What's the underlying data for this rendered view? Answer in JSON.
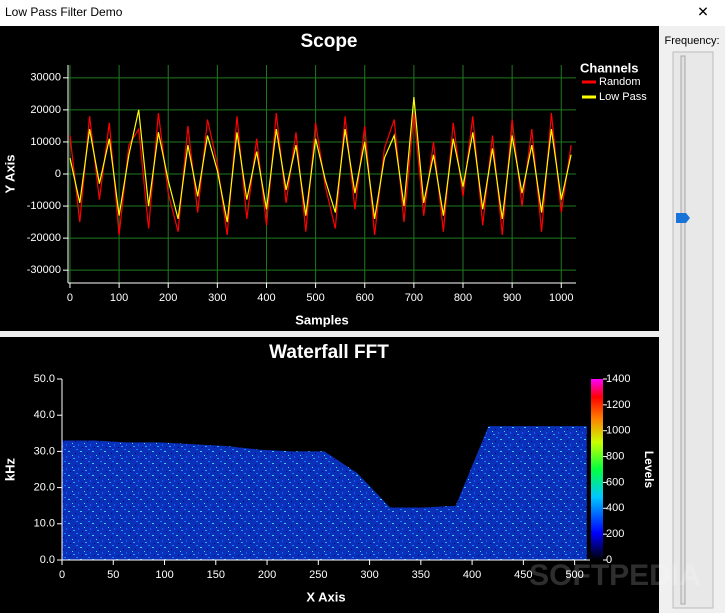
{
  "window": {
    "title": "Low Pass Filter Demo",
    "slider_label": "Frequency:",
    "watermark": "SOFTPEDIA"
  },
  "chart_data": [
    {
      "type": "line",
      "title": "Scope",
      "x_label": "Samples",
      "y_label": "Y Axis",
      "legend_title": "Channels",
      "x": [
        0,
        20,
        40,
        60,
        80,
        100,
        120,
        140,
        160,
        180,
        200,
        220,
        240,
        260,
        280,
        300,
        320,
        340,
        360,
        380,
        400,
        420,
        440,
        460,
        480,
        500,
        520,
        540,
        560,
        580,
        600,
        620,
        640,
        660,
        680,
        700,
        720,
        740,
        760,
        780,
        800,
        820,
        840,
        860,
        880,
        900,
        920,
        940,
        960,
        980,
        1000,
        1020
      ],
      "series": [
        {
          "name": "Random",
          "color": "#ff0000",
          "values": [
            12000,
            -15000,
            18000,
            -8000,
            16000,
            -19000,
            9000,
            14000,
            -17000,
            19000,
            -6000,
            -18000,
            15000,
            -12000,
            17000,
            3000,
            -19000,
            18000,
            -14000,
            11000,
            -16000,
            19000,
            -9000,
            13000,
            -18000,
            16000,
            -4000,
            -17000,
            18000,
            -11000,
            15000,
            -19000,
            8000,
            17000,
            -15000,
            19000,
            -13000,
            10000,
            -18000,
            16000,
            -7000,
            18000,
            -16000,
            12000,
            -19000,
            17000,
            -10000,
            14000,
            -18000,
            19000,
            -12000,
            9000
          ]
        },
        {
          "name": "Low Pass",
          "color": "#ffff00",
          "values": [
            5000,
            -9000,
            14000,
            -3000,
            11000,
            -13000,
            6000,
            20000,
            -10000,
            13000,
            -2000,
            -14000,
            9000,
            -7000,
            12000,
            1000,
            -15000,
            13000,
            -8000,
            7000,
            -11000,
            14000,
            -5000,
            9000,
            -13000,
            11000,
            -2000,
            -12000,
            14000,
            -6000,
            10000,
            -14000,
            5000,
            12000,
            -10000,
            24000,
            -9000,
            6000,
            -13000,
            11000,
            -4000,
            13000,
            -11000,
            8000,
            -14000,
            12000,
            -6000,
            9000,
            -12000,
            14000,
            -8000,
            6000
          ]
        }
      ],
      "xlim": [
        -4,
        1030
      ],
      "ylim": [
        -34000,
        34000
      ],
      "xticks": [
        0,
        100,
        200,
        300,
        400,
        500,
        600,
        700,
        800,
        900,
        1000
      ],
      "yticks": [
        -30000,
        -20000,
        -10000,
        0,
        10000,
        20000,
        30000
      ],
      "grid": true,
      "grid_color": "#1e7a1e",
      "legend": "right"
    },
    {
      "type": "heatmap",
      "title": "Waterfall FFT",
      "x_label": "X Axis",
      "y_label": "kHz",
      "colorbar_label": "Levels",
      "x": [
        0,
        32,
        64,
        96,
        128,
        160,
        192,
        224,
        256,
        288,
        320,
        352,
        384,
        416,
        448,
        480,
        512
      ],
      "values": [
        33,
        33,
        32.5,
        32.5,
        32,
        31.5,
        30.5,
        30,
        30,
        24,
        14.5,
        14.5,
        15,
        37,
        37,
        37,
        37
      ],
      "xlim": [
        0,
        515
      ],
      "ylim": [
        0,
        50
      ],
      "xticks": [
        0,
        50,
        100,
        150,
        200,
        250,
        300,
        350,
        400,
        450,
        500
      ],
      "yticks": [
        {
          "value": 0,
          "label": "0.0"
        },
        {
          "value": 10,
          "label": "10.0"
        },
        {
          "value": 20,
          "label": "20.0"
        },
        {
          "value": 30,
          "label": "30.0"
        },
        {
          "value": 40,
          "label": "40.0"
        },
        {
          "value": 50,
          "label": "50.0"
        }
      ],
      "clim": [
        0,
        1400
      ],
      "cticks": [
        0,
        200,
        400,
        600,
        800,
        1000,
        1200,
        1400
      ]
    }
  ]
}
